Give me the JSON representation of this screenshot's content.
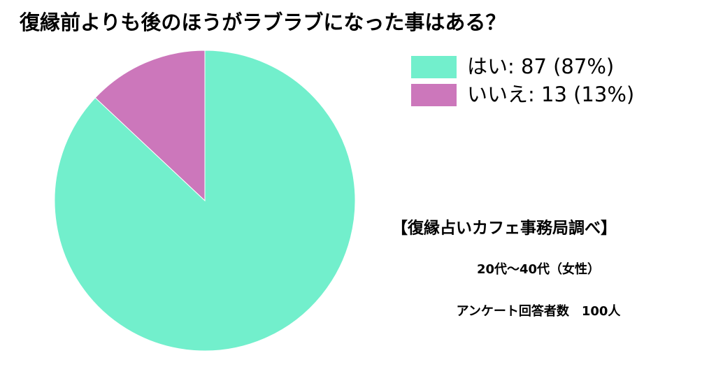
{
  "chart_data": {
    "type": "pie",
    "title": "復縁前よりも後のほうがラブラブになった事はある？",
    "categories": [
      "はい: 87 (87%)",
      "いいえ: 13 (13%)"
    ],
    "values": [
      87,
      13
    ],
    "colors": [
      "#72efcc",
      "#cc77bb"
    ],
    "annotations": [
      "【復縁占いカフェ事務局調べ】",
      "20代〜40代（女性）",
      "アンケート回答者数　100人"
    ]
  }
}
